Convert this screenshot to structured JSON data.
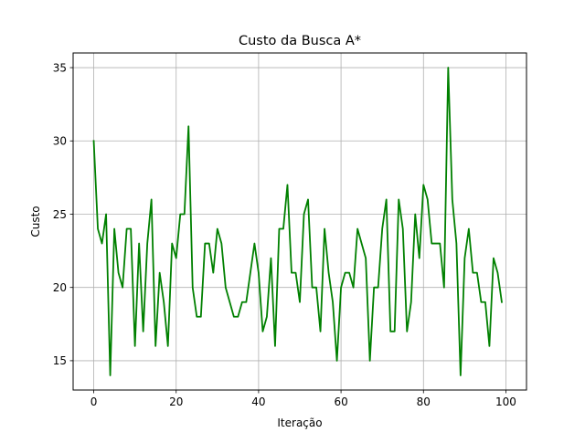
{
  "chart_data": {
    "type": "line",
    "title": "Custo da Busca A*",
    "xlabel": "Iteração",
    "ylabel": "Custo",
    "xlim": [
      -5,
      105
    ],
    "ylim": [
      13,
      36
    ],
    "xticks": [
      0,
      20,
      40,
      60,
      80,
      100
    ],
    "xtick_labels": [
      "0",
      "20",
      "40",
      "60",
      "80",
      "100"
    ],
    "yticks": [
      15,
      20,
      25,
      30,
      35
    ],
    "ytick_labels": [
      "15",
      "20",
      "25",
      "30",
      "35"
    ],
    "grid": true,
    "series": [
      {
        "color": "#008000",
        "x": [
          0,
          1,
          2,
          3,
          4,
          5,
          6,
          7,
          8,
          9,
          10,
          11,
          12,
          13,
          14,
          15,
          16,
          17,
          18,
          19,
          20,
          21,
          22,
          23,
          24,
          25,
          26,
          27,
          28,
          29,
          30,
          31,
          32,
          33,
          34,
          35,
          36,
          37,
          38,
          39,
          40,
          41,
          42,
          43,
          44,
          45,
          46,
          47,
          48,
          49,
          50,
          51,
          52,
          53,
          54,
          55,
          56,
          57,
          58,
          59,
          60,
          61,
          62,
          63,
          64,
          65,
          66,
          67,
          68,
          69,
          70,
          71,
          72,
          73,
          74,
          75,
          76,
          77,
          78,
          79,
          80,
          81,
          82,
          83,
          84,
          85,
          86,
          87,
          88,
          89,
          90,
          91,
          92,
          93,
          94,
          95,
          96,
          97,
          98,
          99
        ],
        "values": [
          30,
          24,
          23,
          25,
          14,
          24,
          21,
          20,
          24,
          24,
          16,
          23,
          17,
          23,
          26,
          16,
          21,
          19,
          16,
          23,
          22,
          25,
          25,
          31,
          20,
          18,
          18,
          23,
          23,
          21,
          24,
          23,
          20,
          19,
          18,
          18,
          19,
          19,
          21,
          23,
          21,
          17,
          18,
          22,
          16,
          24,
          24,
          27,
          21,
          21,
          19,
          25,
          26,
          20,
          20,
          17,
          24,
          21,
          19,
          15,
          20,
          21,
          21,
          20,
          24,
          23,
          22,
          15,
          20,
          20,
          24,
          26,
          17,
          17,
          26,
          24,
          17,
          19,
          25,
          22,
          27,
          26,
          23,
          23,
          23,
          20,
          35,
          26,
          23,
          14,
          22,
          24,
          21,
          21,
          19,
          19,
          16,
          22,
          21,
          19
        ]
      }
    ]
  }
}
